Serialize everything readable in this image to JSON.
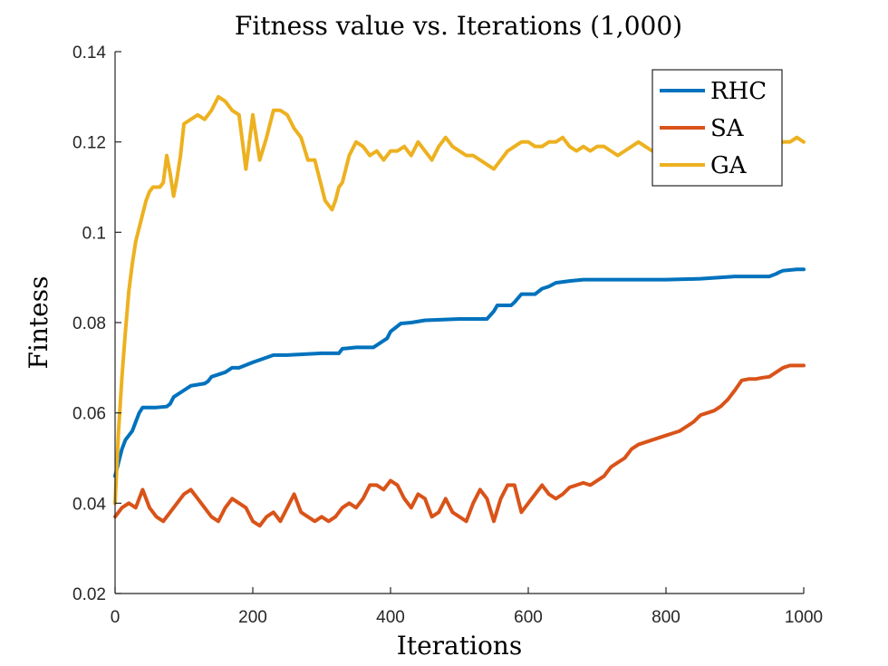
{
  "chart_data": {
    "type": "line",
    "title": "Fitness value vs. Iterations (1,000)",
    "xlabel": "Iterations",
    "ylabel": "Fintess",
    "xlim": [
      0,
      1000
    ],
    "ylim": [
      0.02,
      0.14
    ],
    "xticks": [
      0,
      200,
      400,
      600,
      800,
      1000
    ],
    "xtick_labels": [
      "0",
      "200",
      "400",
      "600",
      "800",
      "1000"
    ],
    "yticks": [
      0.02,
      0.04,
      0.06,
      0.08,
      0.1,
      0.12,
      0.14
    ],
    "ytick_labels": [
      "0.02",
      "0.04",
      "0.06",
      "0.08",
      "0.1",
      "0.12",
      "0.14"
    ],
    "grid": false,
    "legend_position": "top-right",
    "series": [
      {
        "name": "RHC",
        "color": "#0072BD",
        "x": [
          0,
          5,
          10,
          15,
          20,
          25,
          30,
          35,
          40,
          60,
          75,
          80,
          85,
          90,
          95,
          100,
          110,
          130,
          135,
          140,
          150,
          160,
          170,
          180,
          200,
          230,
          250,
          300,
          325,
          330,
          350,
          375,
          385,
          395,
          400,
          415,
          430,
          450,
          500,
          540,
          550,
          555,
          575,
          580,
          590,
          610,
          620,
          630,
          640,
          660,
          680,
          700,
          750,
          800,
          850,
          900,
          925,
          950,
          960,
          965,
          970,
          990,
          1000
        ],
        "y": [
          0.046,
          0.049,
          0.052,
          0.054,
          0.055,
          0.056,
          0.058,
          0.06,
          0.0612,
          0.0612,
          0.0614,
          0.062,
          0.0635,
          0.064,
          0.0645,
          0.065,
          0.066,
          0.0665,
          0.067,
          0.068,
          0.0685,
          0.069,
          0.07,
          0.07,
          0.0712,
          0.0728,
          0.0728,
          0.0732,
          0.0732,
          0.0742,
          0.0745,
          0.0745,
          0.0755,
          0.0765,
          0.078,
          0.0798,
          0.08,
          0.0805,
          0.0808,
          0.0808,
          0.0825,
          0.0838,
          0.0838,
          0.0845,
          0.0863,
          0.0863,
          0.0875,
          0.088,
          0.0888,
          0.0892,
          0.0895,
          0.0895,
          0.0895,
          0.0895,
          0.0897,
          0.0902,
          0.0902,
          0.0902,
          0.0908,
          0.0912,
          0.0915,
          0.0918,
          0.0918
        ]
      },
      {
        "name": "SA",
        "color": "#D95319",
        "x": [
          0,
          10,
          20,
          30,
          40,
          50,
          60,
          70,
          80,
          90,
          100,
          110,
          120,
          130,
          140,
          150,
          160,
          170,
          180,
          190,
          200,
          210,
          220,
          230,
          240,
          250,
          260,
          270,
          280,
          290,
          300,
          310,
          320,
          330,
          340,
          350,
          360,
          370,
          380,
          390,
          400,
          410,
          420,
          430,
          440,
          450,
          460,
          470,
          480,
          490,
          500,
          510,
          520,
          530,
          540,
          550,
          560,
          570,
          580,
          590,
          600,
          610,
          620,
          630,
          640,
          650,
          660,
          670,
          680,
          690,
          700,
          710,
          720,
          730,
          740,
          750,
          760,
          770,
          780,
          790,
          800,
          810,
          820,
          830,
          840,
          850,
          860,
          870,
          880,
          890,
          900,
          910,
          920,
          930,
          940,
          950,
          960,
          970,
          980,
          990,
          1000
        ],
        "y": [
          0.037,
          0.039,
          0.04,
          0.039,
          0.043,
          0.039,
          0.037,
          0.036,
          0.038,
          0.04,
          0.042,
          0.043,
          0.041,
          0.039,
          0.037,
          0.036,
          0.039,
          0.041,
          0.04,
          0.039,
          0.036,
          0.035,
          0.037,
          0.038,
          0.036,
          0.039,
          0.042,
          0.038,
          0.037,
          0.036,
          0.037,
          0.036,
          0.037,
          0.039,
          0.04,
          0.039,
          0.041,
          0.044,
          0.044,
          0.043,
          0.045,
          0.044,
          0.041,
          0.039,
          0.042,
          0.041,
          0.037,
          0.038,
          0.041,
          0.038,
          0.037,
          0.036,
          0.04,
          0.043,
          0.041,
          0.036,
          0.041,
          0.044,
          0.044,
          0.038,
          0.04,
          0.042,
          0.044,
          0.042,
          0.041,
          0.042,
          0.0435,
          0.044,
          0.0445,
          0.044,
          0.045,
          0.046,
          0.048,
          0.049,
          0.05,
          0.052,
          0.053,
          0.0535,
          0.054,
          0.0545,
          0.055,
          0.0555,
          0.056,
          0.057,
          0.058,
          0.0595,
          0.06,
          0.0605,
          0.0615,
          0.063,
          0.065,
          0.0672,
          0.0675,
          0.0675,
          0.0678,
          0.068,
          0.069,
          0.07,
          0.0705,
          0.0705,
          0.0705
        ]
      },
      {
        "name": "GA",
        "color": "#EDB120",
        "x": [
          0,
          5,
          10,
          15,
          20,
          25,
          30,
          35,
          40,
          45,
          50,
          55,
          60,
          65,
          70,
          75,
          80,
          85,
          90,
          95,
          100,
          110,
          120,
          130,
          140,
          150,
          160,
          170,
          180,
          185,
          190,
          195,
          200,
          205,
          210,
          220,
          230,
          240,
          250,
          260,
          270,
          280,
          290,
          300,
          305,
          310,
          315,
          320,
          325,
          330,
          340,
          350,
          360,
          370,
          380,
          390,
          400,
          410,
          420,
          430,
          440,
          450,
          460,
          470,
          480,
          490,
          500,
          510,
          520,
          530,
          540,
          550,
          560,
          570,
          580,
          590,
          600,
          610,
          620,
          630,
          640,
          650,
          660,
          670,
          680,
          690,
          700,
          710,
          720,
          730,
          740,
          750,
          760,
          770,
          780,
          790,
          800,
          810,
          820,
          830,
          840,
          850,
          860,
          870,
          880,
          890,
          900,
          910,
          920,
          930,
          940,
          950,
          960,
          970,
          980,
          990,
          1000
        ],
        "y": [
          0.04,
          0.056,
          0.068,
          0.078,
          0.087,
          0.093,
          0.098,
          0.101,
          0.104,
          0.107,
          0.109,
          0.11,
          0.11,
          0.11,
          0.111,
          0.117,
          0.113,
          0.108,
          0.112,
          0.117,
          0.124,
          0.125,
          0.126,
          0.125,
          0.127,
          0.13,
          0.129,
          0.127,
          0.126,
          0.12,
          0.114,
          0.12,
          0.126,
          0.121,
          0.116,
          0.121,
          0.127,
          0.127,
          0.126,
          0.123,
          0.121,
          0.116,
          0.116,
          0.11,
          0.107,
          0.106,
          0.105,
          0.107,
          0.11,
          0.111,
          0.117,
          0.12,
          0.119,
          0.117,
          0.118,
          0.116,
          0.118,
          0.118,
          0.119,
          0.117,
          0.12,
          0.118,
          0.116,
          0.119,
          0.121,
          0.119,
          0.118,
          0.117,
          0.117,
          0.116,
          0.115,
          0.114,
          0.116,
          0.118,
          0.119,
          0.12,
          0.12,
          0.119,
          0.119,
          0.12,
          0.12,
          0.121,
          0.119,
          0.118,
          0.119,
          0.118,
          0.119,
          0.119,
          0.118,
          0.117,
          0.118,
          0.119,
          0.12,
          0.119,
          0.118,
          0.119,
          0.117,
          0.118,
          0.12,
          0.119,
          0.118,
          0.12,
          0.121,
          0.12,
          0.119,
          0.118,
          0.119,
          0.118,
          0.12,
          0.121,
          0.12,
          0.119,
          0.119,
          0.12,
          0.12,
          0.121,
          0.12
        ]
      }
    ]
  }
}
